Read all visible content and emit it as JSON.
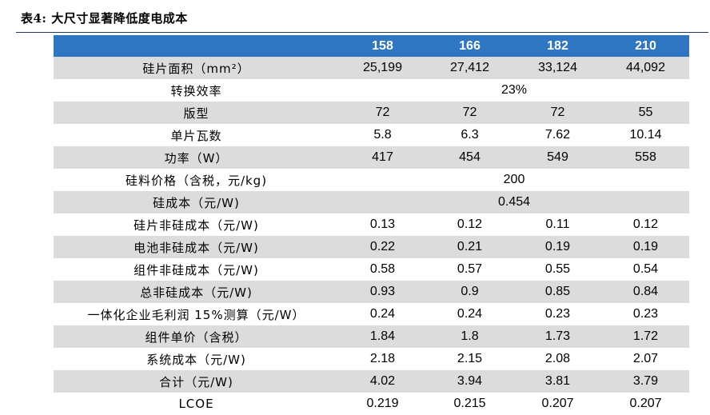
{
  "caption": {
    "prefix": "表4:",
    "title": "大尺寸显著降低度电成本"
  },
  "colors": {
    "header_bg": "#2e76c1",
    "header_text": "#ffffff",
    "row_shade": "#dcdcdc",
    "rule": "#1f3a63"
  },
  "table": {
    "headers": [
      "",
      "158",
      "166",
      "182",
      "210"
    ],
    "rows": [
      {
        "label": "硅片面积（mm²）",
        "values": [
          "25,199",
          "27,412",
          "33,124",
          "44,092"
        ]
      },
      {
        "label": "转换效率",
        "merged": "23%"
      },
      {
        "label": "版型",
        "values": [
          "72",
          "72",
          "72",
          "55"
        ]
      },
      {
        "label": "单片瓦数",
        "values": [
          "5.8",
          "6.3",
          "7.62",
          "10.14"
        ]
      },
      {
        "label": "功率（W）",
        "values": [
          "417",
          "454",
          "549",
          "558"
        ]
      },
      {
        "label": "硅料价格（含税，元/kg)",
        "merged": "200"
      },
      {
        "label": "硅成本（元/W)",
        "merged": "0.454"
      },
      {
        "label": "硅片非硅成本（元/W)",
        "values": [
          "0.13",
          "0.12",
          "0.11",
          "0.12"
        ]
      },
      {
        "label": "电池非硅成本（元/W)",
        "values": [
          "0.22",
          "0.21",
          "0.19",
          "0.19"
        ]
      },
      {
        "label": "组件非硅成本（元/W)",
        "values": [
          "0.58",
          "0.57",
          "0.55",
          "0.54"
        ]
      },
      {
        "label": "总非硅成本（元/W)",
        "values": [
          "0.93",
          "0.9",
          "0.85",
          "0.84"
        ]
      },
      {
        "label": "一体化企业毛利润 15%测算（元/W）",
        "values": [
          "0.24",
          "0.24",
          "0.23",
          "0.23"
        ]
      },
      {
        "label": "组件单价（含税）",
        "values": [
          "1.84",
          "1.8",
          "1.73",
          "1.72"
        ]
      },
      {
        "label": "系统成本（元/W)",
        "values": [
          "2.18",
          "2.15",
          "2.08",
          "2.07"
        ]
      },
      {
        "label": "合计（元/W)",
        "values": [
          "4.02",
          "3.94",
          "3.81",
          "3.79"
        ]
      },
      {
        "label": "LCOE",
        "values": [
          "0.219",
          "0.215",
          "0.207",
          "0.207"
        ]
      }
    ]
  }
}
